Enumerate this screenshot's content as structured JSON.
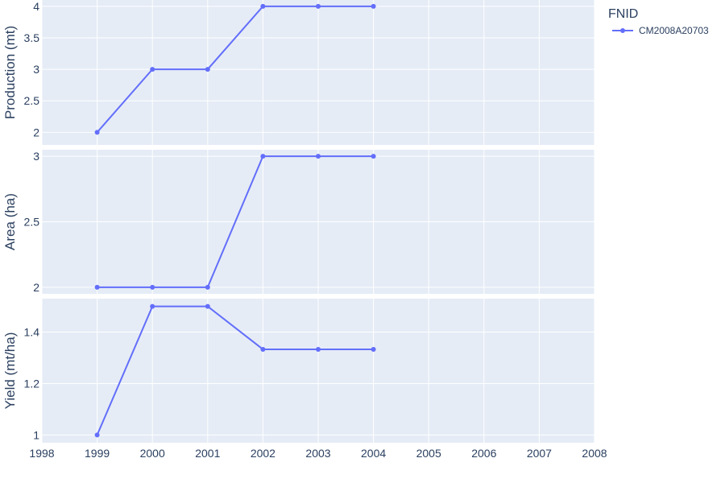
{
  "legend": {
    "title": "FNID",
    "entries": [
      {
        "name": "CM2008A20703",
        "color": "#636efa"
      }
    ]
  },
  "colors": {
    "plot_bg": "#e5ecf6",
    "grid": "#ffffff",
    "series": "#636efa",
    "text": "#2a3f5f"
  },
  "chart_data": [
    {
      "type": "line",
      "ylabel": "Production (mt)",
      "ylim": [
        1.8,
        4.1
      ],
      "yticks": [
        "2",
        "2.5",
        "3",
        "3.5",
        "4"
      ],
      "series": [
        {
          "name": "CM2008A20703",
          "x": [
            1999,
            2000,
            2001,
            2002,
            2003,
            2004
          ],
          "values": [
            2,
            3,
            3,
            4,
            4,
            4
          ]
        }
      ]
    },
    {
      "type": "line",
      "ylabel": "Area (ha)",
      "ylim": [
        1.95,
        3.05
      ],
      "yticks": [
        "2",
        "2.5",
        "3"
      ],
      "series": [
        {
          "name": "CM2008A20703",
          "x": [
            1999,
            2000,
            2001,
            2002,
            2003,
            2004
          ],
          "values": [
            2,
            2,
            2,
            3,
            3,
            3
          ]
        }
      ]
    },
    {
      "type": "line",
      "ylabel": "Yield (mt/ha)",
      "ylim": [
        0.97,
        1.53
      ],
      "yticks": [
        "1",
        "1.2",
        "1.4"
      ],
      "series": [
        {
          "name": "CM2008A20703",
          "x": [
            1999,
            2000,
            2001,
            2002,
            2003,
            2004
          ],
          "values": [
            1,
            1.5,
            1.5,
            1.333,
            1.333,
            1.333
          ]
        }
      ]
    }
  ],
  "x_axis": {
    "range": [
      1998,
      2008
    ],
    "ticks": [
      "1998",
      "1999",
      "2000",
      "2001",
      "2002",
      "2003",
      "2004",
      "2005",
      "2006",
      "2007",
      "2008"
    ]
  }
}
